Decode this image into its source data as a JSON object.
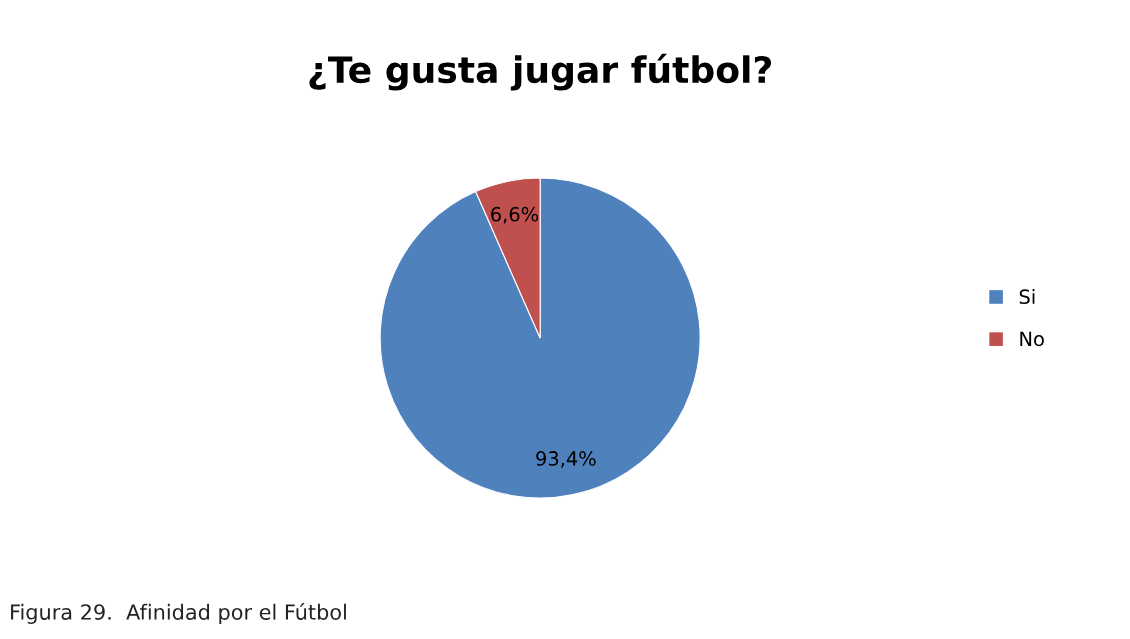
{
  "chart_data": {
    "type": "pie",
    "title": "¿Te gusta jugar fútbol?",
    "categories": [
      "Si",
      "No"
    ],
    "values": [
      93.4,
      6.6
    ],
    "colors": [
      "#4f81bd",
      "#c0504d"
    ],
    "value_labels": [
      "93,4%",
      "6,6%"
    ],
    "legend": "right",
    "annotations": [
      "Figura 29.  Afinidad por el Fútbol"
    ]
  }
}
